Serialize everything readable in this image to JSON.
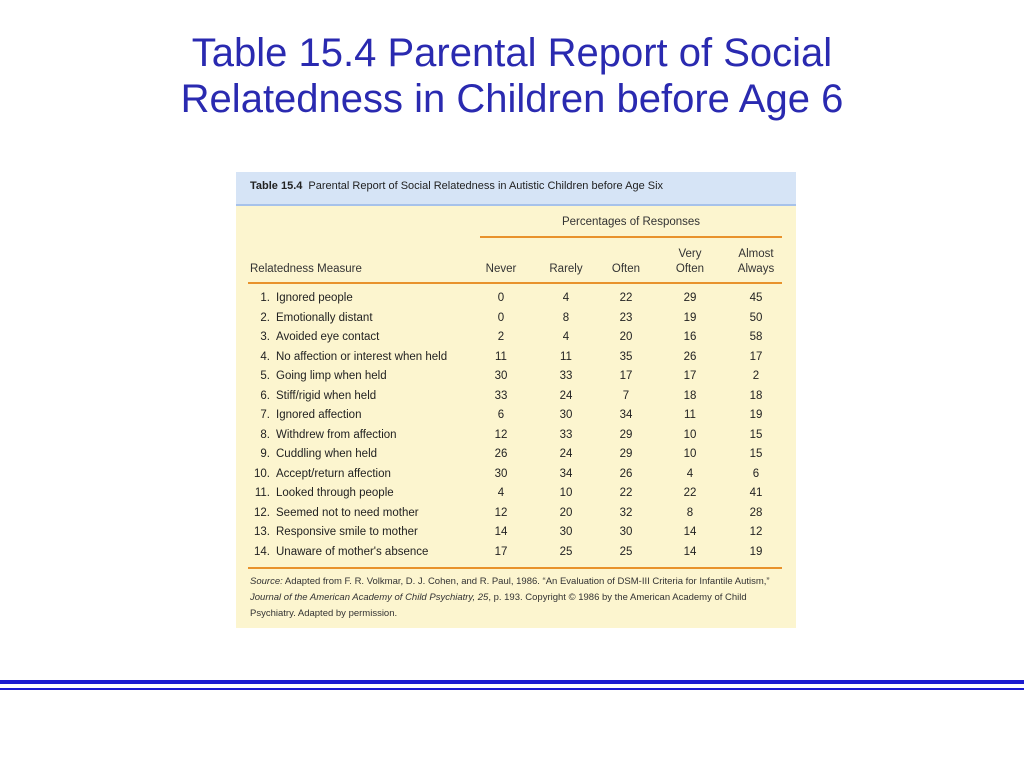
{
  "slide": {
    "title_line1": "Table 15.4 Parental Report of Social",
    "title_line2": "Relatedness in Children before Age 6"
  },
  "table": {
    "label": "Table 15.4",
    "caption": "Parental Report of Social Relatedness in Autistic Children before Age Six",
    "group_header": "Percentages of Responses",
    "columns": {
      "measure": "Relatedness Measure",
      "never": "Never",
      "rarely": "Rarely",
      "often": "Often",
      "very_often_1": "Very",
      "very_often_2": "Often",
      "almost_always_1": "Almost",
      "almost_always_2": "Always"
    },
    "rows": [
      {
        "num": "1.",
        "measure": "Ignored people",
        "values": [
          "0",
          "4",
          "22",
          "29",
          "45"
        ]
      },
      {
        "num": "2.",
        "measure": "Emotionally distant",
        "values": [
          "0",
          "8",
          "23",
          "19",
          "50"
        ]
      },
      {
        "num": "3.",
        "measure": "Avoided eye contact",
        "values": [
          "2",
          "4",
          "20",
          "16",
          "58"
        ]
      },
      {
        "num": "4.",
        "measure": "No affection or interest when held",
        "values": [
          "11",
          "11",
          "35",
          "26",
          "17"
        ]
      },
      {
        "num": "5.",
        "measure": "Going limp when held",
        "values": [
          "30",
          "33",
          "17",
          "17",
          "2"
        ]
      },
      {
        "num": "6.",
        "measure": "Stiff/rigid when held",
        "values": [
          "33",
          "24",
          "7",
          "18",
          "18"
        ]
      },
      {
        "num": "7.",
        "measure": "Ignored affection",
        "values": [
          "6",
          "30",
          "34",
          "11",
          "19"
        ]
      },
      {
        "num": "8.",
        "measure": "Withdrew from affection",
        "values": [
          "12",
          "33",
          "29",
          "10",
          "15"
        ]
      },
      {
        "num": "9.",
        "measure": "Cuddling when held",
        "values": [
          "26",
          "24",
          "29",
          "10",
          "15"
        ]
      },
      {
        "num": "10.",
        "measure": "Accept/return affection",
        "values": [
          "30",
          "34",
          "26",
          "4",
          "6"
        ]
      },
      {
        "num": "11.",
        "measure": "Looked through people",
        "values": [
          "4",
          "10",
          "22",
          "22",
          "41"
        ]
      },
      {
        "num": "12.",
        "measure": "Seemed not to need mother",
        "values": [
          "12",
          "20",
          "32",
          "8",
          "28"
        ]
      },
      {
        "num": "13.",
        "measure": "Responsive smile to mother",
        "values": [
          "14",
          "30",
          "30",
          "14",
          "12"
        ]
      },
      {
        "num": "14.",
        "measure": "Unaware of mother's absence",
        "values": [
          "17",
          "25",
          "25",
          "14",
          "19"
        ]
      }
    ],
    "source": {
      "label": "Source:",
      "text_1": " Adapted from F. R. Volkmar, D. J. Cohen, and R. Paul, 1986. “An Evaluation of DSM-III Criteria for Infantile Autism,” ",
      "journal": "Journal of the American Academy of Child Psychiatry, 25",
      "text_2": ", p. 193. Copyright © 1986 by the American Academy of Child Psychiatry. Adapted by permission."
    }
  },
  "colors": {
    "title": "#2a2ab0",
    "caption_bg": "#d6e4f6",
    "table_bg": "#fcf5cf",
    "rule": "#e8922c",
    "footer_bar": "#1c1cd0"
  }
}
